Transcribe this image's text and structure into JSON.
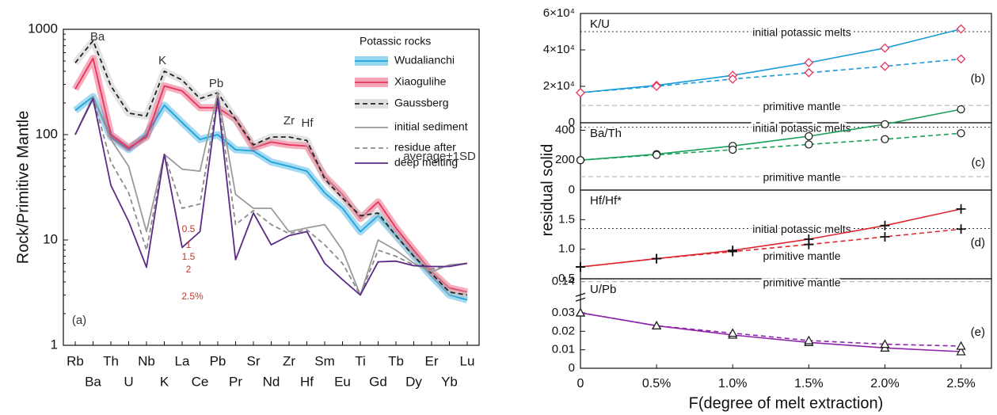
{
  "chart_data": [
    {
      "type": "line",
      "log_scale": true,
      "ylabel": "Rock/Primitive Mantle",
      "ylim": [
        1,
        1000
      ],
      "yticks": [
        1,
        10,
        100,
        1000
      ],
      "categories": [
        "Rb",
        "Ba",
        "Th",
        "U",
        "Nb",
        "K",
        "La",
        "Ce",
        "Pb",
        "Pr",
        "Sr",
        "Nd",
        "Zr",
        "Hf",
        "Sm",
        "Eu",
        "Ti",
        "Gd",
        "Tb",
        "Dy",
        "Er",
        "Yb",
        "Lu"
      ],
      "legend_title": "Potassic rocks",
      "legend": "upper right",
      "series": [
        {
          "name": "Wudalianchi",
          "color": "#1ba3dd",
          "style": "solid",
          "band": true,
          "values": [
            170,
            230,
            95,
            72,
            100,
            190,
            130,
            90,
            100,
            72,
            70,
            55,
            50,
            45,
            28,
            20,
            12,
            17,
            11,
            7,
            4.5,
            3,
            2.7
          ]
        },
        {
          "name": "Xiaogulihe",
          "color": "#e8335a",
          "style": "solid",
          "band": true,
          "values": [
            270,
            530,
            100,
            75,
            95,
            290,
            260,
            180,
            180,
            140,
            75,
            85,
            80,
            78,
            40,
            27,
            16,
            23,
            13,
            8,
            5,
            3.5,
            3.2
          ]
        },
        {
          "name": "Gaussberg",
          "color": "#222222",
          "style": "dashed",
          "band": true,
          "values": [
            480,
            780,
            290,
            160,
            150,
            400,
            330,
            220,
            250,
            140,
            80,
            95,
            95,
            88,
            38,
            25,
            17,
            18,
            11,
            7,
            4.8,
            3.2,
            3.0
          ]
        },
        {
          "name": "initial sediment",
          "color": "#9a9a9a",
          "style": "solid",
          "values": [
            100,
            230,
            90,
            50,
            12,
            65,
            47,
            45,
            250,
            27,
            20,
            20,
            12,
            13,
            14,
            8,
            3,
            10,
            8,
            6,
            5,
            5.8,
            6
          ]
        },
        {
          "name": "residue after",
          "color": "#8a8a8a",
          "style": "dashed",
          "values": [
            100,
            225,
            55,
            28,
            8,
            65,
            20,
            22,
            230,
            14,
            19,
            14,
            11.5,
            12.5,
            9,
            6,
            3,
            8,
            7,
            5.8,
            5.3,
            5.7,
            6
          ]
        },
        {
          "name": "deep melting",
          "color": "#5b2a86",
          "style": "solid",
          "values": [
            100,
            220,
            33,
            15,
            5.5,
            65,
            8.5,
            12,
            220,
            6.5,
            18,
            9,
            11,
            12,
            6,
            4.2,
            3,
            6.2,
            6.3,
            5.7,
            5.6,
            5.6,
            6
          ]
        }
      ],
      "annotations": [
        "Ba",
        "K",
        "Pb",
        "Zr",
        "Hf",
        "average±1SD",
        "(a)",
        "0.5",
        "1",
        "1.5",
        "2",
        "2.5%"
      ]
    },
    {
      "type": "line",
      "label": "K/U",
      "panel": "(b)",
      "marker": "diamond",
      "marker_color": "#e8335a",
      "ylabel": "residual solid",
      "xlim": [
        0,
        2.7
      ],
      "x": [
        0,
        0.5,
        1,
        1.5,
        2,
        2.5
      ],
      "ylim": [
        0,
        60000
      ],
      "yticks": [
        0,
        {
          "value": 20000,
          "label": "2×10⁴"
        },
        {
          "value": 40000,
          "label": "4×10⁴"
        },
        {
          "value": 60000,
          "label": "6×10⁴"
        }
      ],
      "reference_lines": [
        {
          "label": "initial potassic melts",
          "value": 50000,
          "color": "#333333",
          "style": "dotted"
        },
        {
          "label": "primitive mantle",
          "value": 9500,
          "color": "#aaaaaa",
          "style": "dashed"
        }
      ],
      "series": [
        {
          "color": "#1a9ad6",
          "style": "solid",
          "values": [
            16500,
            20500,
            26000,
            33000,
            41000,
            51500
          ]
        },
        {
          "color": "#1a9ad6",
          "style": "dashed",
          "values": [
            16500,
            20000,
            24000,
            27500,
            31000,
            35000
          ]
        }
      ]
    },
    {
      "type": "line",
      "label": "Ba/Th",
      "panel": "(c)",
      "marker": "circle",
      "marker_color": "#222222",
      "xlim": [
        0,
        2.7
      ],
      "x": [
        0,
        0.5,
        1,
        1.5,
        2,
        2.5
      ],
      "ylim": [
        0,
        450
      ],
      "yticks": [
        0,
        200,
        400
      ],
      "reference_lines": [
        {
          "label": "initial potassic melts",
          "value": 420,
          "color": "#333333",
          "style": "dotted"
        },
        {
          "label": "primitive mantle",
          "value": 90,
          "color": "#aaaaaa",
          "style": "dashed"
        }
      ],
      "series": [
        {
          "color": "#1aa05a",
          "style": "solid",
          "values": [
            200,
            240,
            295,
            360,
            440,
            540
          ]
        },
        {
          "color": "#1aa05a",
          "style": "dashed",
          "values": [
            200,
            235,
            270,
            305,
            340,
            380
          ]
        }
      ]
    },
    {
      "type": "line",
      "label": "Hf/Hf*",
      "panel": "(d)",
      "marker": "plus",
      "marker_color": "#111111",
      "xlim": [
        0,
        2.7
      ],
      "x": [
        0,
        0.5,
        1,
        1.5,
        2,
        2.5
      ],
      "ylim": [
        0.5,
        2.0
      ],
      "yticks": [
        0.5,
        {
          "value": 1,
          "label": "1.0"
        },
        1.5
      ],
      "reference_lines": [
        {
          "label": "initial potassic melts",
          "value": 1.35,
          "color": "#333333",
          "style": "dotted"
        },
        {
          "label": "primitive mantle",
          "value": 0.9,
          "color": "#ffffff",
          "style": "dashed"
        }
      ],
      "series": [
        {
          "color": "#e0262f",
          "style": "solid",
          "values": [
            0.7,
            0.84,
            0.98,
            1.17,
            1.4,
            1.68
          ]
        },
        {
          "color": "#e0262f",
          "style": "dashed",
          "values": [
            0.7,
            0.84,
            0.96,
            1.08,
            1.21,
            1.34
          ]
        }
      ]
    },
    {
      "type": "line",
      "label": "U/Pb",
      "panel": "(e)",
      "marker": "triangle",
      "marker_color": "#222222",
      "axis_break": true,
      "xlabel": "F(degree of melt extraction)",
      "xlim": [
        0,
        2.7
      ],
      "x": [
        0,
        0.5,
        1,
        1.5,
        2,
        2.5
      ],
      "xticks": [
        0,
        {
          "value": 0.5,
          "label": "0.5%"
        },
        {
          "value": 1,
          "label": "1.0%"
        },
        {
          "value": 1.5,
          "label": "1.5%"
        },
        {
          "value": 2,
          "label": "2.0%"
        },
        {
          "value": 2.5,
          "label": "2.5%"
        }
      ],
      "ylim": [
        0,
        0.15
      ],
      "yticks": [
        0,
        0.01,
        0.02,
        0.03,
        0.14
      ],
      "reference_lines": [
        {
          "label": "primitive mantle",
          "value": 0.14,
          "color": "#aaaaaa",
          "style": "dashed"
        }
      ],
      "series": [
        {
          "color": "#8e24aa",
          "style": "solid",
          "values": [
            0.03,
            0.023,
            0.018,
            0.014,
            0.011,
            0.009
          ]
        },
        {
          "color": "#8e24aa",
          "style": "dashed",
          "values": [
            0.03,
            0.023,
            0.019,
            0.015,
            0.013,
            0.012
          ]
        }
      ]
    }
  ]
}
